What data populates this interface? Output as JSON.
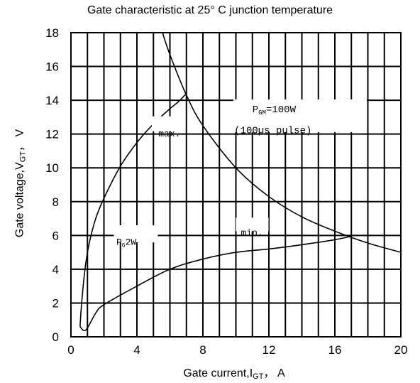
{
  "chart_data": {
    "type": "line",
    "title": "Gate characteristic at 25°  C junction temperature",
    "xlabel": {
      "main": "Gate current,I",
      "sub": "GT",
      "unit": "， A"
    },
    "ylabel": {
      "main": "Gate voltage,V",
      "sub": "GT",
      "unit": "， V"
    },
    "xlim": [
      0,
      20
    ],
    "ylim": [
      0,
      18
    ],
    "xticks": [
      0,
      4,
      8,
      12,
      16,
      20
    ],
    "yticks": [
      0,
      2,
      4,
      6,
      8,
      10,
      12,
      14,
      16,
      18
    ],
    "grid": true,
    "series": [
      {
        "name": "max.",
        "x": [
          0.55,
          0.65,
          0.85,
          1.1,
          1.5,
          2.0,
          3.0,
          4.0,
          5.0,
          6.0,
          6.5,
          7.0
        ],
        "y": [
          0.6,
          2.0,
          4.0,
          5.5,
          7.0,
          8.2,
          10.1,
          11.5,
          12.6,
          13.5,
          13.9,
          14.4
        ]
      },
      {
        "name": "min.",
        "x": [
          0.55,
          0.9,
          1.5,
          2.0,
          4.0,
          6.0,
          8.0,
          10.0,
          12.0,
          14.0,
          16.0,
          17.0
        ],
        "y": [
          0.6,
          0.4,
          1.4,
          1.9,
          3.0,
          4.0,
          4.6,
          5.0,
          5.2,
          5.45,
          5.75,
          5.95
        ]
      },
      {
        "name": "PGM=100W (100µs pulse)",
        "x": [
          5.55,
          6.0,
          7.0,
          8.0,
          10.0,
          12.0,
          14.0,
          16.0,
          18.0,
          20.0
        ],
        "y": [
          18.0,
          16.7,
          14.3,
          12.5,
          10.0,
          8.3,
          7.1,
          6.25,
          5.55,
          5.0
        ]
      }
    ],
    "annotations": {
      "max_label": "max.",
      "min_label": "min.",
      "pg_main": "P",
      "pg_sub": "G",
      "pg_value": "2W",
      "pgm_main": "P",
      "pgm_sub": "GM",
      "pgm_value": "=100W",
      "pgm_note": "(100µs pulse)"
    }
  }
}
